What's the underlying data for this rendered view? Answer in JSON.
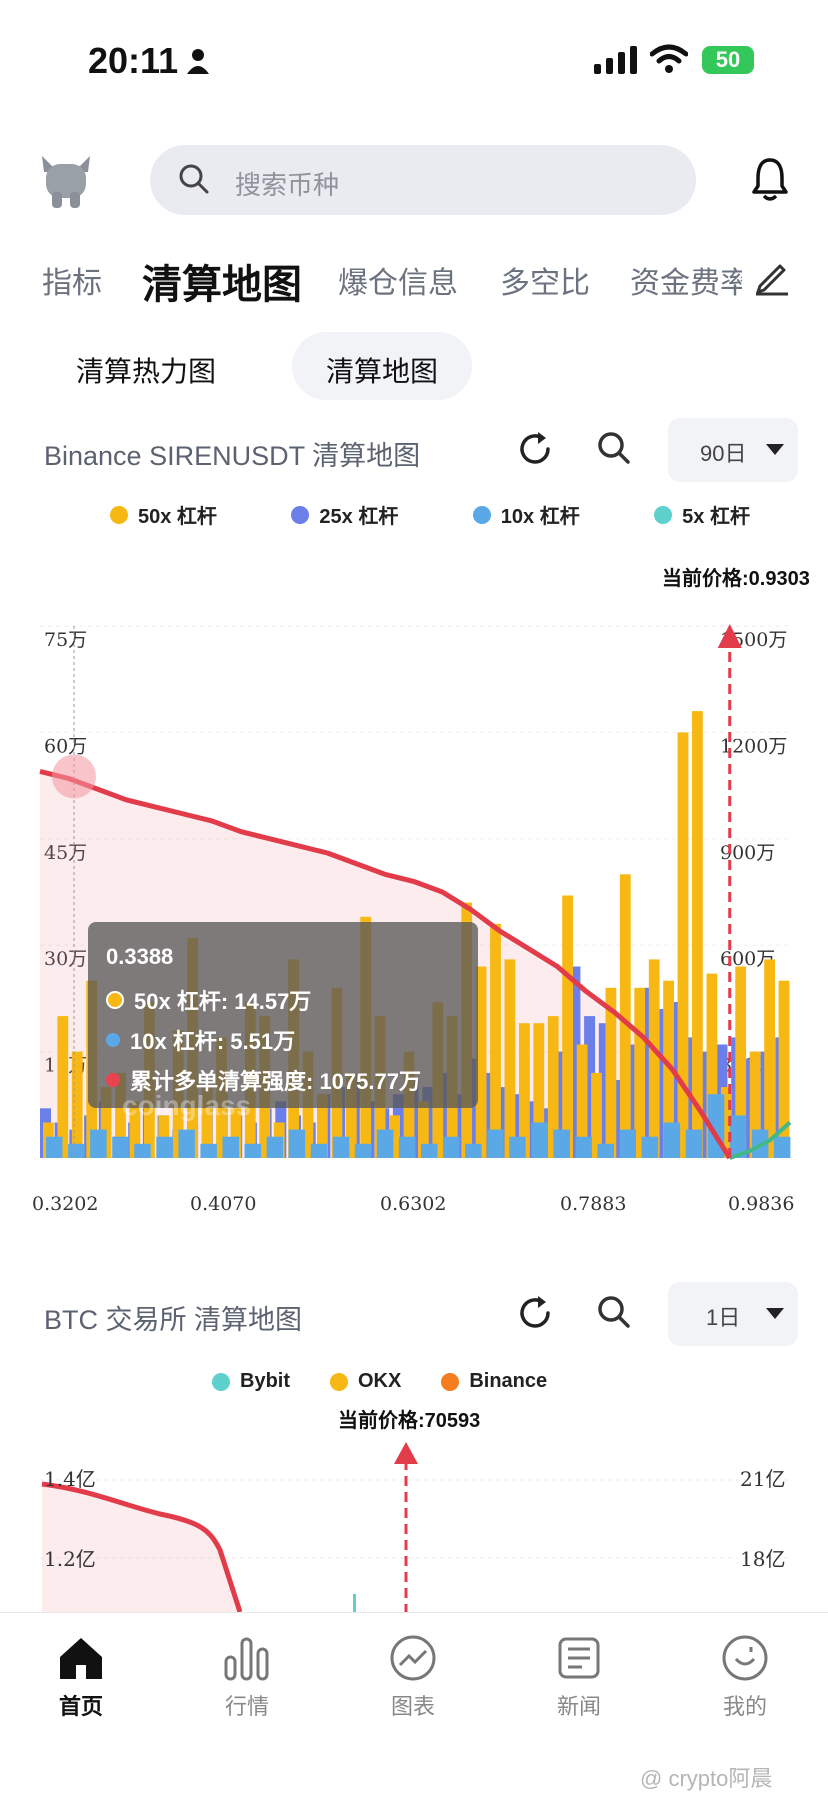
{
  "status_bar": {
    "time": "20:11",
    "battery": "50"
  },
  "header": {
    "search_placeholder": "搜索币种"
  },
  "tabs": [
    "指标",
    "清算地图",
    "爆仓信息",
    "多空比",
    "资金费率"
  ],
  "subtabs": [
    "清算热力图",
    "清算地图"
  ],
  "chart1": {
    "title": "Binance SIRENUSDT 清算地图",
    "period": "90日",
    "legend": [
      {
        "label": "50x 杠杆",
        "color": "#F7B814"
      },
      {
        "label": "25x 杠杆",
        "color": "#6B7FEA"
      },
      {
        "label": "10x 杠杆",
        "color": "#5AA9E6"
      },
      {
        "label": "5x 杠杆",
        "color": "#5ED1CC"
      }
    ],
    "current_price_label": "当前价格:0.9303",
    "y_left_ticks": [
      "75万",
      "60万",
      "45万",
      "30万",
      "15万"
    ],
    "y_right_ticks": [
      "1500万",
      "1200万",
      "900万",
      "600万",
      "300万"
    ],
    "x_ticks": [
      "0.3202",
      "0.4070",
      "0.6302",
      "0.7883",
      "0.9836"
    ],
    "tooltip": {
      "price": "0.3388",
      "rows": [
        {
          "label": "50x 杠杆: 14.57万",
          "color": "#F7B814"
        },
        {
          "label": "10x 杠杆: 5.51万",
          "color": "#5AA9E6"
        },
        {
          "label": "累计多单清算强度: 1075.77万",
          "color": "#e8434e"
        }
      ]
    },
    "watermark": "coinglass"
  },
  "chart_data": {
    "type": "bar",
    "x_range": [
      0.3202,
      0.9836
    ],
    "y_left_unit": "万",
    "ylim_left": [
      0,
      75
    ],
    "ylim_right": [
      0,
      1500
    ],
    "current_price": 0.9303,
    "bars_50x": [
      5,
      20,
      15,
      25,
      10,
      12,
      8,
      22,
      6,
      18,
      31,
      10,
      17,
      7,
      22,
      20,
      5,
      28,
      15,
      9,
      24,
      12,
      34,
      20,
      6,
      15,
      8,
      22,
      20,
      36,
      27,
      33,
      28,
      19,
      19,
      20,
      37,
      16,
      12,
      24,
      40,
      24,
      28,
      25,
      60,
      63,
      26,
      10,
      27,
      15,
      28,
      25
    ],
    "bars_25x": [
      7,
      5,
      4,
      6,
      8,
      3,
      5,
      7,
      6,
      4,
      5,
      8,
      9,
      6,
      5,
      7,
      8,
      6,
      5,
      9,
      10,
      12,
      8,
      7,
      9,
      11,
      10,
      12,
      9,
      14,
      12,
      10,
      9,
      8,
      7,
      15,
      27,
      20,
      19,
      11,
      16,
      24,
      21,
      22,
      17,
      15,
      16,
      17,
      14,
      15,
      17
    ],
    "bars_10x": [
      3,
      2,
      4,
      3,
      2,
      3,
      4,
      2,
      3,
      2,
      3,
      4,
      2,
      3,
      2,
      4,
      3,
      2,
      3,
      2,
      4,
      3,
      5,
      4,
      3,
      2,
      4,
      3,
      5,
      4,
      9,
      6,
      4,
      3
    ],
    "cumulative_line": [
      1090,
      1070,
      1040,
      1010,
      990,
      970,
      950,
      920,
      900,
      880,
      860,
      830,
      800,
      780,
      750,
      700,
      640,
      590,
      540,
      470,
      410,
      340,
      250,
      130,
      0
    ],
    "short_line": [
      0,
      20,
      50,
      100
    ]
  },
  "chart2": {
    "title": "BTC 交易所 清算地图",
    "period": "1日",
    "legend": [
      {
        "label": "Bybit",
        "color": "#5ED1CC"
      },
      {
        "label": "OKX",
        "color": "#F7B814"
      },
      {
        "label": "Binance",
        "color": "#F57C1F"
      }
    ],
    "current_price_label": "当前价格:70593",
    "y_left_ticks": [
      "1.4亿",
      "1.2亿"
    ],
    "y_right_ticks": [
      "21亿",
      "18亿"
    ]
  },
  "bottom_nav": [
    {
      "label": "首页",
      "icon": "home-icon"
    },
    {
      "label": "行情",
      "icon": "market-bars-icon"
    },
    {
      "label": "图表",
      "icon": "chart-circle-icon"
    },
    {
      "label": "新闻",
      "icon": "news-icon"
    },
    {
      "label": "我的",
      "icon": "profile-icon"
    }
  ],
  "watermark_bottom": "@ crypto阿晨"
}
